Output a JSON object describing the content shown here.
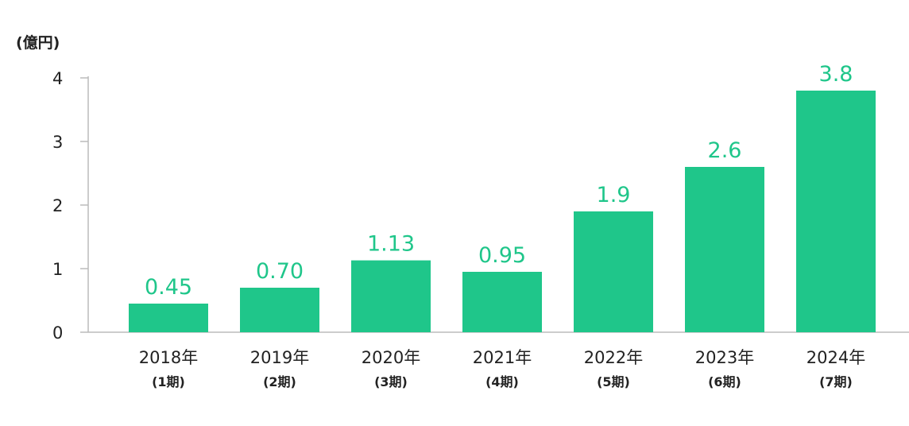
{
  "chart_data": {
    "type": "bar",
    "unit_label": "(億円)",
    "categories": [
      "2018年",
      "2019年",
      "2020年",
      "2021年",
      "2022年",
      "2023年",
      "2024年"
    ],
    "category_sublabels": [
      "(1期)",
      "(2期)",
      "(3期)",
      "(4期)",
      "(5期)",
      "(6期)",
      "(7期)"
    ],
    "values": [
      0.45,
      0.7,
      1.13,
      0.95,
      1.9,
      2.6,
      3.8
    ],
    "value_labels": [
      "0.45",
      "0.70",
      "1.13",
      "0.95",
      "1.9",
      "2.6",
      "3.8"
    ],
    "yticks": [
      "0",
      "1",
      "2",
      "3",
      "4"
    ],
    "ylim": [
      0,
      4
    ],
    "grid": false,
    "legend": "none"
  },
  "colors": {
    "bar": "#1fc68a",
    "value_label": "#1fc68a",
    "axis": "#bbbbbb",
    "text": "#222222"
  }
}
